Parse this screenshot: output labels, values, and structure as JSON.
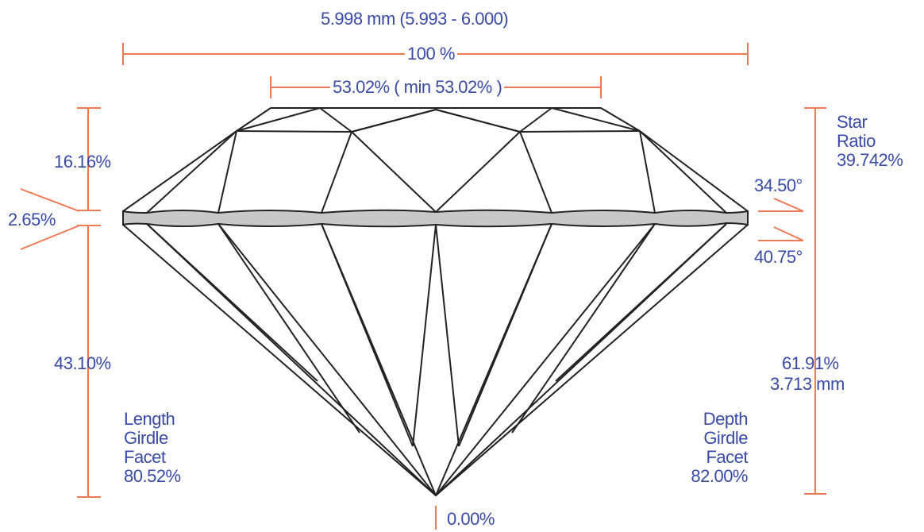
{
  "colors": {
    "dimension": "#ee7a55",
    "text": "#3a4aa8",
    "outline": "#222222",
    "girdle": "#c8c8c8"
  },
  "measurements": {
    "diameter": "5.998 mm (5.993 - 6.000)",
    "width_pct": "100 %",
    "table": "53.02% ( min 53.02% )",
    "crown_height": "16.16%",
    "girdle_thickness": "2.65%",
    "pavilion_depth": "43.10%",
    "crown_angle": "34.50°",
    "pavilion_angle": "40.75°",
    "culet": "0.00%",
    "total_depth_pct": "61.91%",
    "total_depth_mm": "3.713 mm"
  },
  "star_ratio": {
    "line1": "Star",
    "line2": "Ratio",
    "value": "39.742%"
  },
  "length_girdle_facet": {
    "line1": "Length",
    "line2": "Girdle",
    "line3": "Facet",
    "value": "80.52%"
  },
  "depth_girdle_facet": {
    "line1": "Depth",
    "line2": "Girdle",
    "line3": "Facet",
    "value": "82.00%"
  }
}
